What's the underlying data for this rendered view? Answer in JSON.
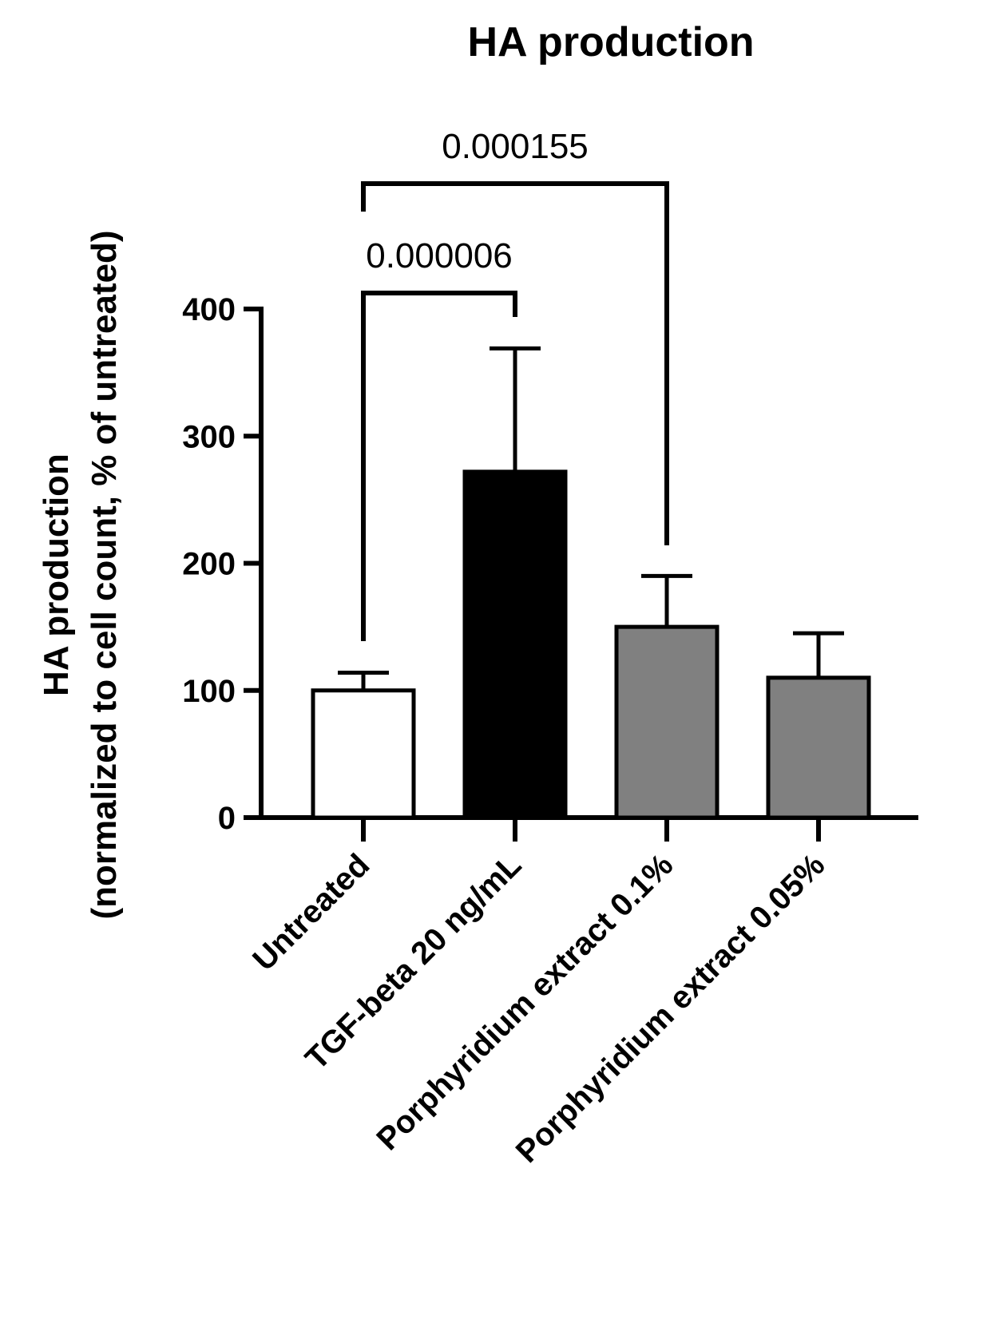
{
  "chart_data": {
    "type": "bar",
    "title": "HA production",
    "ylabel_line1": "HA production",
    "ylabel_line2": "(normalized to cell count, % of untreated)",
    "xlabel": "",
    "categories": [
      "Untreated",
      "TGF-beta 20 ng/mL",
      "Porphyridium extract 0.1%",
      "Porphyridium extract 0.05%"
    ],
    "values": [
      100,
      272,
      150,
      110
    ],
    "error_upper": [
      14,
      97,
      40,
      35
    ],
    "bar_colors": [
      "#ffffff",
      "#000000",
      "#808080",
      "#808080"
    ],
    "ylim": [
      0,
      400
    ],
    "yticks": [
      0,
      100,
      200,
      300,
      400
    ],
    "ytick_labels": [
      "0",
      "100",
      "200",
      "300",
      "400"
    ],
    "grid": false,
    "comparisons": [
      {
        "from": 0,
        "to": 1,
        "label": "0.000006"
      },
      {
        "from": 0,
        "to": 2,
        "label": "0.000155"
      }
    ]
  }
}
